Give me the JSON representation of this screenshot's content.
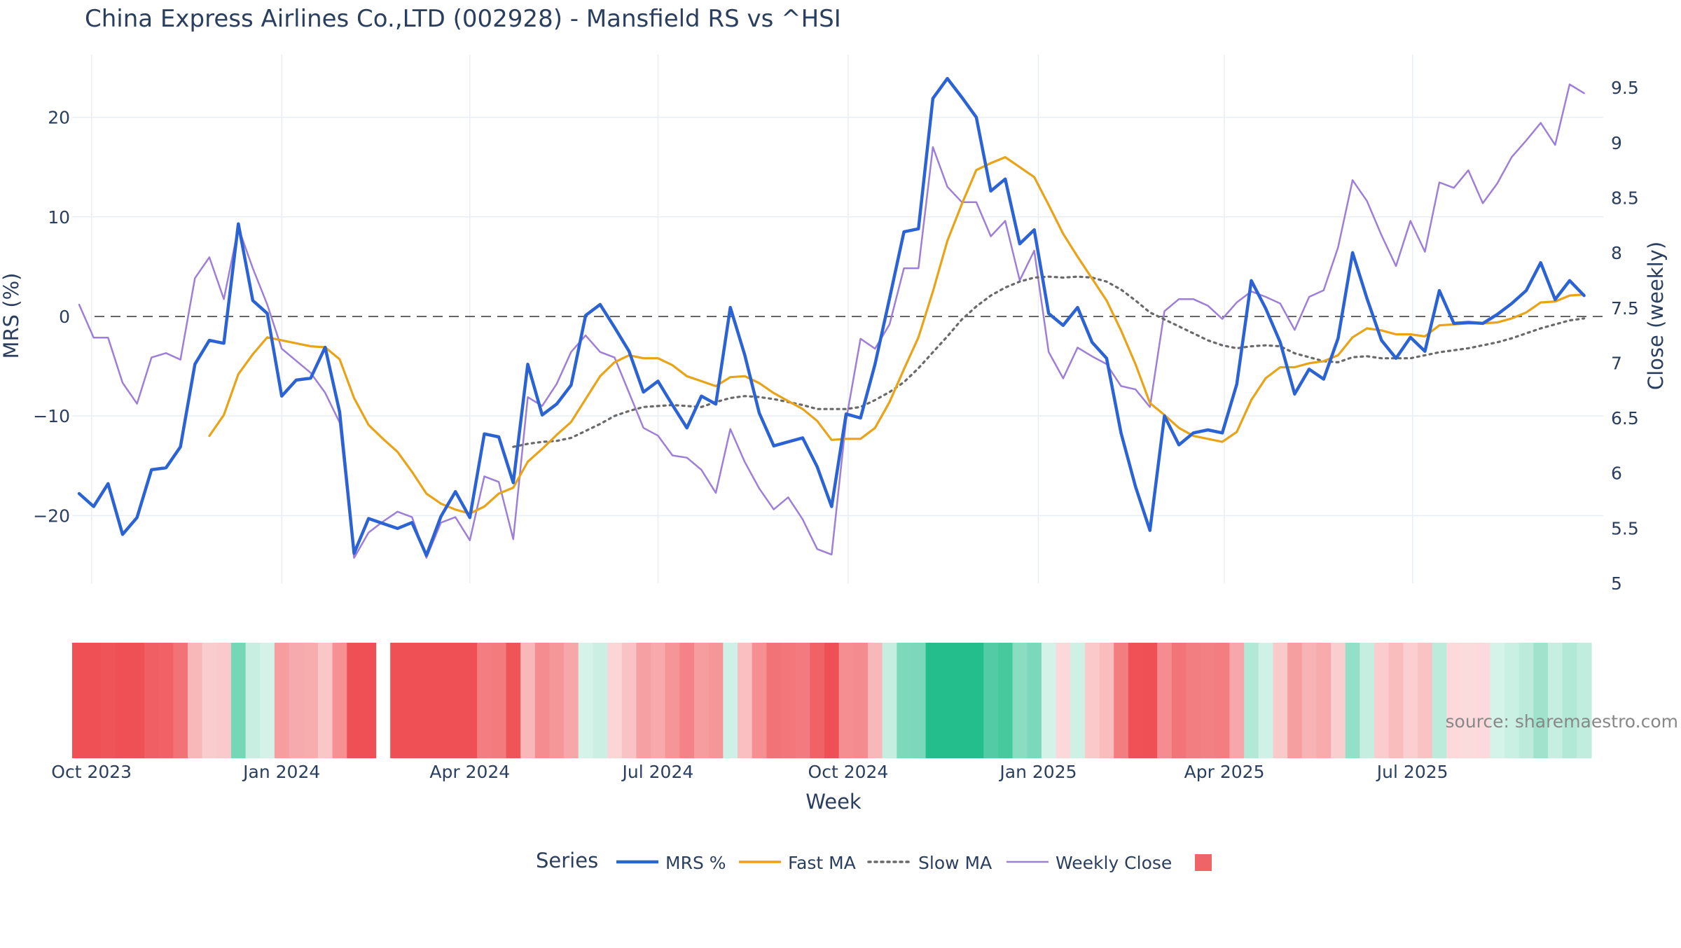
{
  "chart_data": {
    "type": "line",
    "title": "China Express Airlines Co.,LTD (002928) - Mansfield RS vs ^HSI",
    "xlabel": "Week",
    "ylabel_left": "MRS (%)",
    "ylabel_right": "Close (weekly)",
    "source": "source: sharemaestro.com",
    "legend_title": "Series",
    "legend_position": "bottom",
    "grid": true,
    "zero_line": true,
    "x_start": "2023-09-25",
    "x_tick_labels": [
      "Oct 2023",
      "Jan 2024",
      "Apr 2024",
      "Jul 2024",
      "Oct 2024",
      "Jan 2025",
      "Apr 2025",
      "Jul 2025"
    ],
    "x_tick_dates": [
      "2023-10-01",
      "2024-01-01",
      "2024-04-01",
      "2024-07-01",
      "2024-10-01",
      "2025-01-01",
      "2025-04-01",
      "2025-07-01"
    ],
    "y_left_ticks": [
      -20,
      -10,
      0,
      10,
      20
    ],
    "y_left_range": [
      -26.8,
      26.3
    ],
    "y_right_ticks": [
      5,
      5.5,
      6,
      6.5,
      7,
      7.5,
      8,
      8.5,
      9,
      9.5
    ],
    "y_right_range": [
      5,
      9.8
    ],
    "colors": {
      "mrs": "#2b63d4",
      "fast": "#e8a317",
      "slow": "#696969",
      "close": "#9d7fd8",
      "zero": "#666666",
      "grid": "#e8eef4",
      "heat_neg": "#ef5055",
      "heat_pos": "#23be8b"
    },
    "series": [
      {
        "name": "MRS %",
        "color": "#2b63d4",
        "style": "solid",
        "axis": "left",
        "values": [
          -17.8,
          -19.1,
          -16.8,
          -21.9,
          -20.2,
          -15.4,
          -15.2,
          -13.1,
          -4.8,
          -2.4,
          -2.7,
          9.3,
          1.6,
          0.3,
          -8.0,
          -6.4,
          -6.2,
          -3.1,
          -9.6,
          -23.8,
          -20.3,
          -20.8,
          -21.3,
          -20.7,
          -24.0,
          -20.1,
          -17.6,
          -20.2,
          -11.8,
          -12.1,
          -16.7,
          -4.8,
          -9.9,
          -8.8,
          -6.9,
          0.1,
          1.2,
          -1.1,
          -3.5,
          -7.6,
          -6.5,
          -8.9,
          -11.2,
          -8.0,
          -8.8,
          0.9,
          -3.9,
          -9.7,
          -13.0,
          -12.6,
          -12.2,
          -15.1,
          -19.1,
          -9.8,
          -10.2,
          -4.8,
          1.8,
          8.5,
          8.8,
          21.9,
          23.9,
          22.0,
          20.0,
          12.6,
          13.8,
          7.3,
          8.7,
          0.3,
          -0.9,
          0.9,
          -2.6,
          -4.2,
          -11.7,
          -17.1,
          -21.5,
          -10.0,
          -12.9,
          -11.7,
          -11.4,
          -11.7,
          -6.8,
          3.6,
          0.8,
          -2.6,
          -7.8,
          -5.3,
          -6.3,
          -2.2,
          6.4,
          1.8,
          -2.4,
          -4.2,
          -2.1,
          -3.5,
          2.6,
          -0.7,
          -0.6,
          -0.7,
          0.2,
          1.3,
          2.6,
          5.4,
          1.7,
          3.6,
          2.1
        ]
      },
      {
        "name": "Fast MA",
        "color": "#e8a317",
        "style": "solid",
        "axis": "left",
        "values": [
          null,
          null,
          null,
          null,
          null,
          null,
          null,
          null,
          null,
          -12.0,
          -9.9,
          -5.8,
          -3.8,
          -2.1,
          -2.4,
          -2.7,
          -3.0,
          -3.1,
          -4.3,
          -8.2,
          -10.9,
          -12.3,
          -13.6,
          -15.6,
          -17.8,
          -18.8,
          -19.4,
          -19.8,
          -19.1,
          -17.8,
          -17.2,
          -14.6,
          -13.3,
          -11.9,
          -10.6,
          -8.3,
          -6.0,
          -4.6,
          -3.9,
          -4.2,
          -4.2,
          -4.9,
          -6.0,
          -6.5,
          -7.0,
          -6.1,
          -6.0,
          -6.7,
          -7.7,
          -8.5,
          -9.3,
          -10.5,
          -12.4,
          -12.3,
          -12.3,
          -11.2,
          -8.6,
          -5.3,
          -2.1,
          2.5,
          7.6,
          11.3,
          14.7,
          15.4,
          16.0,
          15.0,
          14.0,
          11.2,
          8.3,
          6.0,
          3.8,
          1.6,
          -1.4,
          -4.8,
          -8.7,
          -9.9,
          -11.2,
          -12.0,
          -12.3,
          -12.6,
          -11.6,
          -8.4,
          -6.2,
          -5.1,
          -5.1,
          -4.7,
          -4.5,
          -3.9,
          -2.1,
          -1.2,
          -1.4,
          -1.8,
          -1.8,
          -2.0,
          -0.9,
          -0.8,
          -0.7,
          -0.7,
          -0.6,
          -0.2,
          0.4,
          1.4,
          1.5,
          2.1,
          2.2
        ]
      },
      {
        "name": "Slow MA",
        "color": "#696969",
        "style": "dotted",
        "axis": "left",
        "values": [
          null,
          null,
          null,
          null,
          null,
          null,
          null,
          null,
          null,
          null,
          null,
          null,
          null,
          null,
          null,
          null,
          null,
          null,
          null,
          null,
          null,
          null,
          null,
          null,
          null,
          null,
          null,
          null,
          null,
          null,
          -13.1,
          -12.8,
          -12.6,
          -12.5,
          -12.2,
          -11.5,
          -10.8,
          -10.0,
          -9.5,
          -9.1,
          -9.0,
          -8.9,
          -9.0,
          -9.1,
          -8.6,
          -8.2,
          -8.0,
          -8.1,
          -8.3,
          -8.6,
          -8.9,
          -9.3,
          -9.3,
          -9.3,
          -9.1,
          -8.4,
          -7.6,
          -6.6,
          -5.2,
          -3.6,
          -2.0,
          -0.3,
          1.0,
          2.1,
          2.9,
          3.5,
          3.9,
          4.0,
          3.9,
          4.0,
          3.9,
          3.5,
          2.7,
          1.6,
          0.4,
          -0.3,
          -1.0,
          -1.7,
          -2.4,
          -2.9,
          -3.2,
          -3.0,
          -2.9,
          -3.0,
          -3.7,
          -4.1,
          -4.5,
          -4.6,
          -4.1,
          -4.0,
          -4.2,
          -4.2,
          -4.2,
          -3.9,
          -3.6,
          -3.4,
          -3.2,
          -2.9,
          -2.6,
          -2.2,
          -1.7,
          -1.2,
          -0.8,
          -0.4,
          -0.2
        ]
      },
      {
        "name": "Weekly Close",
        "color": "#9d7fd8",
        "style": "solid",
        "axis": "right",
        "values": [
          7.53,
          7.23,
          7.23,
          6.82,
          6.63,
          7.05,
          7.09,
          7.03,
          7.77,
          7.96,
          7.58,
          8.23,
          7.86,
          7.53,
          7.13,
          7.02,
          6.91,
          6.73,
          6.46,
          5.23,
          5.46,
          5.56,
          5.65,
          5.6,
          5.23,
          5.55,
          5.6,
          5.39,
          5.97,
          5.92,
          5.4,
          6.69,
          6.61,
          6.81,
          7.1,
          7.25,
          7.1,
          7.05,
          6.73,
          6.41,
          6.34,
          6.16,
          6.14,
          6.03,
          5.82,
          6.4,
          6.1,
          5.86,
          5.67,
          5.78,
          5.58,
          5.31,
          5.26,
          6.48,
          7.22,
          7.13,
          7.35,
          7.86,
          7.86,
          8.96,
          8.6,
          8.46,
          8.46,
          8.15,
          8.29,
          7.75,
          8.02,
          7.1,
          6.86,
          7.14,
          7.06,
          6.99,
          6.79,
          6.76,
          6.6,
          7.47,
          7.58,
          7.58,
          7.52,
          7.4,
          7.55,
          7.65,
          7.6,
          7.54,
          7.3,
          7.6,
          7.66,
          8.05,
          8.66,
          8.47,
          8.16,
          7.88,
          8.29,
          8.01,
          8.64,
          8.59,
          8.75,
          8.45,
          8.63,
          8.87,
          9.02,
          9.18,
          8.98,
          9.53,
          9.45
        ]
      }
    ],
    "heatmap_strip": {
      "rows": 1,
      "gap_weeks": [
        21
      ],
      "note": "colored by MRS sign and magnitude; red negative, green positive"
    }
  }
}
